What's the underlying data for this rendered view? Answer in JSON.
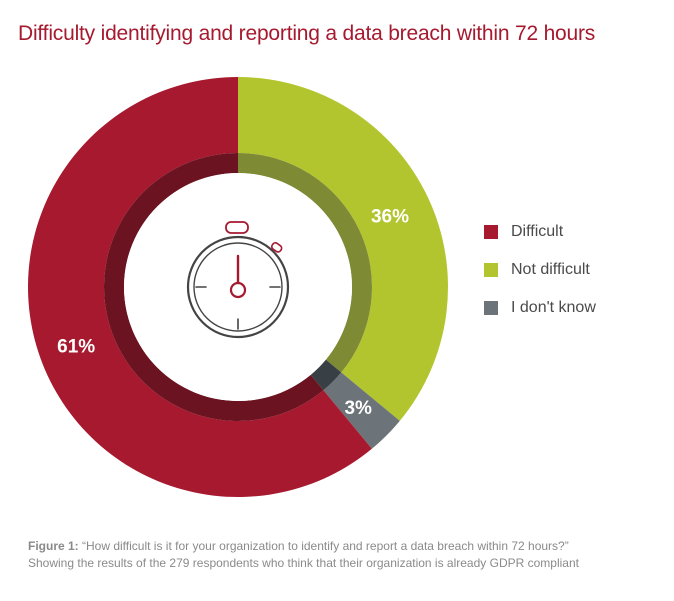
{
  "title": "Difficulty identifying and reporting a data breach within 72 hours",
  "chart_data": {
    "type": "pie",
    "title": "Difficulty identifying and reporting a data breach within 72 hours",
    "categories": [
      "Not difficult",
      "I don't know",
      "Difficult"
    ],
    "values": [
      36,
      3,
      61
    ],
    "labels": [
      "36%",
      "3%",
      "61%"
    ],
    "colors": [
      "#b3c52e",
      "#6d7479",
      "#a6192e"
    ],
    "inner_colors": [
      "#7e8a34",
      "#384046",
      "#6b1320"
    ],
    "legend": [
      {
        "label": "Difficult",
        "color": "#a6192e"
      },
      {
        "label": "Not difficult",
        "color": "#b3c52e"
      },
      {
        "label": "I don't know",
        "color": "#6d7479"
      }
    ],
    "legend_position": "right"
  },
  "center_icon": "stopwatch-icon",
  "caption": {
    "prefix": "Figure 1:",
    "line1": " “How difficult is it for your organization to identify and report a data breach within 72 hours?”",
    "line2": "Showing the results of the 279 respondents who think that their organization is already GDPR compliant"
  }
}
